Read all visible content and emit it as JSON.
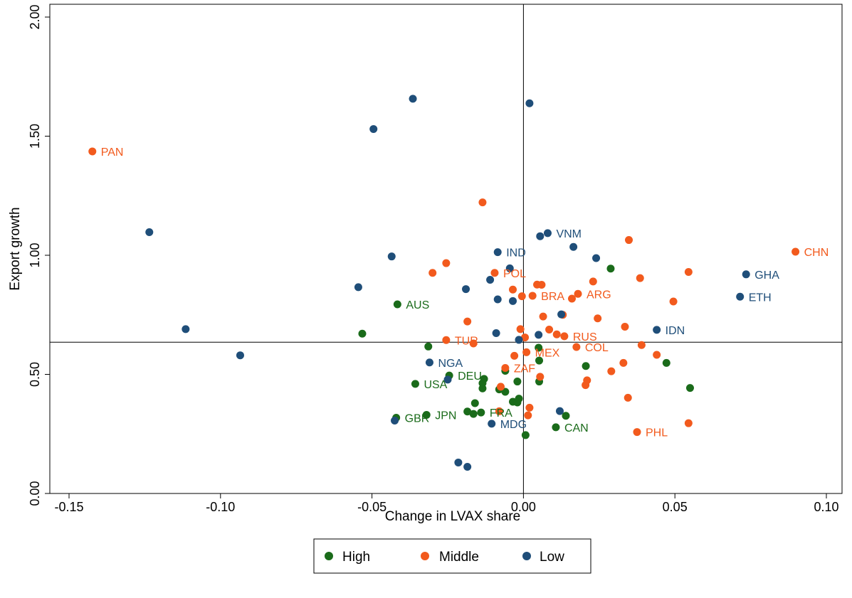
{
  "chart_data": {
    "type": "scatter",
    "title": "",
    "xlabel": "Change in LVAX share",
    "ylabel": "Export growth",
    "xlim": [
      -0.15,
      0.1
    ],
    "ylim": [
      0.0,
      2.0
    ],
    "xticks": [
      -0.15,
      -0.1,
      -0.05,
      0.0,
      0.05,
      0.1
    ],
    "xtick_labels": [
      "-0.15",
      "-0.10",
      "-0.05",
      "0.00",
      "0.05",
      "0.10"
    ],
    "yticks": [
      0.0,
      0.5,
      1.0,
      1.5,
      2.0
    ],
    "ytick_labels": [
      "0.00",
      "0.50",
      "1.00",
      "1.50",
      "2.00"
    ],
    "reference_lines": {
      "vertical_x": 0.0,
      "horizontal_y": 0.635
    },
    "grid": false,
    "legend_position": "bottom",
    "series": [
      {
        "name": "High",
        "color": "#1a6b1a",
        "points": [
          {
            "x": 0.0288,
            "y": 0.944
          },
          {
            "x": -0.0416,
            "y": 0.794,
            "label": "AUS"
          },
          {
            "x": -0.0532,
            "y": 0.671
          },
          {
            "x": -0.0314,
            "y": 0.617
          },
          {
            "x": 0.005,
            "y": 0.612
          },
          {
            "x": 0.0472,
            "y": 0.548
          },
          {
            "x": 0.0206,
            "y": 0.535
          },
          {
            "x": 0.055,
            "y": 0.443
          },
          {
            "x": 0.0052,
            "y": 0.558
          },
          {
            "x": 0.0052,
            "y": 0.47
          },
          {
            "x": -0.0245,
            "y": 0.495,
            "label": "DEU"
          },
          {
            "x": -0.0357,
            "y": 0.46,
            "label": "USA"
          },
          {
            "x": -0.013,
            "y": 0.481
          },
          {
            "x": -0.0135,
            "y": 0.463
          },
          {
            "x": -0.0135,
            "y": 0.441
          },
          {
            "x": -0.002,
            "y": 0.47
          },
          {
            "x": -0.006,
            "y": 0.427
          },
          {
            "x": -0.008,
            "y": 0.437
          },
          {
            "x": -0.0035,
            "y": 0.385
          },
          {
            "x": -0.002,
            "y": 0.382
          },
          {
            "x": -0.0015,
            "y": 0.398
          },
          {
            "x": -0.016,
            "y": 0.379
          },
          {
            "x": -0.0185,
            "y": 0.344
          },
          {
            "x": -0.0165,
            "y": 0.334
          },
          {
            "x": -0.014,
            "y": 0.34,
            "label": "FRA"
          },
          {
            "x": -0.032,
            "y": 0.33,
            "label": "JPN"
          },
          {
            "x": -0.042,
            "y": 0.318,
            "label": "GBR"
          },
          {
            "x": 0.014,
            "y": 0.326
          },
          {
            "x": 0.0107,
            "y": 0.278,
            "label": "CAN"
          },
          {
            "x": 0.0007,
            "y": 0.245
          },
          {
            "x": -0.006,
            "y": 0.515
          }
        ]
      },
      {
        "name": "Middle",
        "color": "#f25a1d",
        "points": [
          {
            "x": -0.1423,
            "y": 1.436,
            "label": "PAN"
          },
          {
            "x": -0.0135,
            "y": 1.222
          },
          {
            "x": 0.0348,
            "y": 1.064
          },
          {
            "x": 0.0898,
            "y": 1.015,
            "label": "CHN"
          },
          {
            "x": -0.0255,
            "y": 0.967
          },
          {
            "x": -0.03,
            "y": 0.926
          },
          {
            "x": -0.0095,
            "y": 0.926,
            "label": "POL"
          },
          {
            "x": 0.0545,
            "y": 0.93
          },
          {
            "x": 0.0385,
            "y": 0.904
          },
          {
            "x": 0.023,
            "y": 0.89
          },
          {
            "x": 0.0045,
            "y": 0.877
          },
          {
            "x": 0.006,
            "y": 0.876
          },
          {
            "x": -0.0035,
            "y": 0.856
          },
          {
            "x": 0.018,
            "y": 0.838,
            "label": "ARG"
          },
          {
            "x": 0.003,
            "y": 0.83,
            "label": "BRA"
          },
          {
            "x": -0.0005,
            "y": 0.828
          },
          {
            "x": 0.016,
            "y": 0.818
          },
          {
            "x": 0.0495,
            "y": 0.806
          },
          {
            "x": 0.013,
            "y": 0.75
          },
          {
            "x": 0.0065,
            "y": 0.743
          },
          {
            "x": 0.0245,
            "y": 0.735
          },
          {
            "x": -0.0185,
            "y": 0.722
          },
          {
            "x": 0.0335,
            "y": 0.7
          },
          {
            "x": -0.001,
            "y": 0.69
          },
          {
            "x": 0.0085,
            "y": 0.688
          },
          {
            "x": 0.011,
            "y": 0.668
          },
          {
            "x": 0.0135,
            "y": 0.66,
            "label": "RUS"
          },
          {
            "x": 0.0005,
            "y": 0.655
          },
          {
            "x": -0.0255,
            "y": 0.644,
            "label": "TUR"
          },
          {
            "x": -0.0165,
            "y": 0.63
          },
          {
            "x": 0.039,
            "y": 0.623
          },
          {
            "x": 0.0175,
            "y": 0.615,
            "label": "COL"
          },
          {
            "x": 0.001,
            "y": 0.593,
            "label": "MEX"
          },
          {
            "x": 0.044,
            "y": 0.582
          },
          {
            "x": -0.003,
            "y": 0.578
          },
          {
            "x": 0.033,
            "y": 0.548
          },
          {
            "x": -0.006,
            "y": 0.527,
            "label": "ZAF"
          },
          {
            "x": 0.029,
            "y": 0.513
          },
          {
            "x": 0.0055,
            "y": 0.49
          },
          {
            "x": 0.021,
            "y": 0.475
          },
          {
            "x": 0.0205,
            "y": 0.455
          },
          {
            "x": -0.0075,
            "y": 0.448
          },
          {
            "x": 0.0345,
            "y": 0.402
          },
          {
            "x": 0.002,
            "y": 0.36
          },
          {
            "x": -0.008,
            "y": 0.345
          },
          {
            "x": 0.0015,
            "y": 0.328
          },
          {
            "x": 0.0545,
            "y": 0.295
          },
          {
            "x": 0.0375,
            "y": 0.258,
            "label": "PHL"
          }
        ]
      },
      {
        "name": "Low",
        "color": "#1f4e79",
        "points": [
          {
            "x": -0.0365,
            "y": 1.657
          },
          {
            "x": 0.002,
            "y": 1.638
          },
          {
            "x": -0.0495,
            "y": 1.53
          },
          {
            "x": -0.1235,
            "y": 1.097
          },
          {
            "x": 0.008,
            "y": 1.093,
            "label": "VNM"
          },
          {
            "x": 0.0055,
            "y": 1.08
          },
          {
            "x": 0.0165,
            "y": 1.035
          },
          {
            "x": -0.0085,
            "y": 1.013,
            "label": "IND"
          },
          {
            "x": -0.0435,
            "y": 0.995
          },
          {
            "x": 0.024,
            "y": 0.988
          },
          {
            "x": -0.0045,
            "y": 0.945
          },
          {
            "x": 0.0735,
            "y": 0.92,
            "label": "GHA"
          },
          {
            "x": -0.011,
            "y": 0.897
          },
          {
            "x": -0.0545,
            "y": 0.866
          },
          {
            "x": -0.019,
            "y": 0.858
          },
          {
            "x": 0.0715,
            "y": 0.826,
            "label": "ETH"
          },
          {
            "x": -0.0085,
            "y": 0.815
          },
          {
            "x": -0.0035,
            "y": 0.808
          },
          {
            "x": 0.0125,
            "y": 0.752
          },
          {
            "x": -0.1115,
            "y": 0.69
          },
          {
            "x": 0.044,
            "y": 0.687,
            "label": "IDN"
          },
          {
            "x": -0.009,
            "y": 0.673
          },
          {
            "x": 0.005,
            "y": 0.666
          },
          {
            "x": -0.0015,
            "y": 0.645
          },
          {
            "x": -0.0935,
            "y": 0.58
          },
          {
            "x": -0.031,
            "y": 0.55,
            "label": "NGA"
          },
          {
            "x": -0.025,
            "y": 0.478
          },
          {
            "x": 0.012,
            "y": 0.346
          },
          {
            "x": -0.0425,
            "y": 0.306
          },
          {
            "x": -0.0105,
            "y": 0.293,
            "label": "MDG"
          },
          {
            "x": -0.0215,
            "y": 0.13
          },
          {
            "x": -0.0185,
            "y": 0.112
          }
        ]
      }
    ]
  }
}
